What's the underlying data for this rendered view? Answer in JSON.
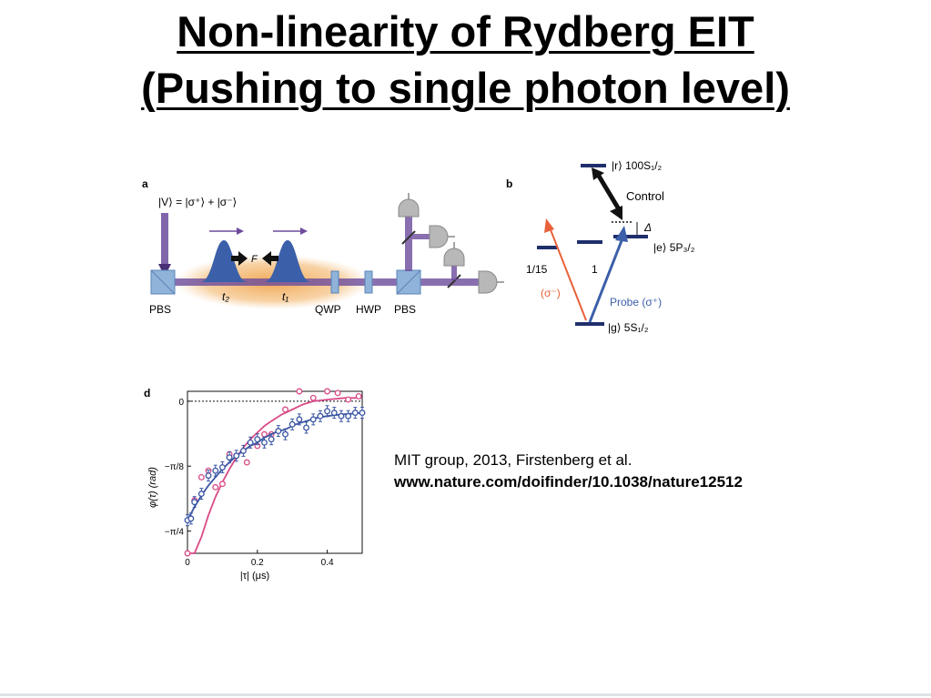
{
  "slide": {
    "title_line1": "Non-linearity of Rydberg EIT",
    "title_line2": "(Pushing to single photon level)",
    "caption_line1": "MIT group, 2013, Firstenberg et al.",
    "caption_line2": "www.nature.com/doifinder/10.1038/nature12512"
  },
  "panel_a": {
    "letter": "a",
    "state_label": "|V⟩ = |σ⁺⟩ + |σ⁻⟩",
    "force_label": "F",
    "t2_label": "t₂",
    "t1_label": "t₁",
    "pbs_left": "PBS",
    "qwp": "QWP",
    "hwp": "HWP",
    "pbs_right": "PBS",
    "colors": {
      "beam": "#6c4b9c",
      "cloud": "#f0a24a",
      "pulse": "#3b5fa8",
      "optic": "#8fb3d9"
    }
  },
  "panel_b": {
    "letter": "b",
    "rydberg_label": "|r⟩ 100S₁/₂",
    "control_label": "Control",
    "delta_label": "Δ",
    "excited_label": "|e⟩ 5P₃/₂",
    "ratio_label": "1/15",
    "one_label": "1",
    "sigma_minus_label": "(σ⁻)",
    "probe_label": "Probe (σ⁺)",
    "ground_label": "|g⟩ 5S₁/₂",
    "colors": {
      "probe": "#3b5fa8",
      "sigma_minus": "#e8613a",
      "level": "#1f2f6b"
    }
  },
  "panel_d": {
    "letter": "d"
  },
  "chart_data": {
    "type": "scatter",
    "xlabel": "|τ| (μs)",
    "ylabel": "φ(τ) (rad)",
    "xlim": [
      0,
      0.5
    ],
    "ylim": [
      -0.92,
      0.06
    ],
    "x_ticks": [
      0,
      0.2,
      0.4
    ],
    "x_tick_labels": [
      "0",
      "0.2",
      "0.4"
    ],
    "y_ticks": [
      0,
      -0.3927,
      -0.7854
    ],
    "y_tick_labels": [
      "0",
      "−π/8",
      "−π/4"
    ],
    "zero_line_dashed": true,
    "series": [
      {
        "color": "#d94a86",
        "marker": "circle-open",
        "points": [
          [
            0.0,
            -1.0
          ],
          [
            0.02,
            -0.6
          ],
          [
            0.04,
            -0.46
          ],
          [
            0.06,
            -0.42
          ],
          [
            0.08,
            -0.52
          ],
          [
            0.1,
            -0.5
          ],
          [
            0.12,
            -0.32
          ],
          [
            0.14,
            -0.33
          ],
          [
            0.17,
            -0.37
          ],
          [
            0.2,
            -0.27
          ],
          [
            0.22,
            -0.2
          ],
          [
            0.24,
            -0.2
          ],
          [
            0.28,
            -0.05
          ],
          [
            0.32,
            0.06
          ],
          [
            0.36,
            0.02
          ],
          [
            0.4,
            0.08
          ],
          [
            0.43,
            0.05
          ],
          [
            0.46,
            0.01
          ],
          [
            0.49,
            0.03
          ]
        ],
        "fit": [
          [
            0.0,
            -1.18
          ],
          [
            0.02,
            -0.98
          ],
          [
            0.04,
            -0.82
          ],
          [
            0.06,
            -0.69
          ],
          [
            0.08,
            -0.58
          ],
          [
            0.1,
            -0.49
          ],
          [
            0.12,
            -0.41
          ],
          [
            0.14,
            -0.34
          ],
          [
            0.16,
            -0.28
          ],
          [
            0.18,
            -0.23
          ],
          [
            0.2,
            -0.19
          ],
          [
            0.22,
            -0.15
          ],
          [
            0.24,
            -0.12
          ],
          [
            0.27,
            -0.08
          ],
          [
            0.3,
            -0.05
          ],
          [
            0.33,
            -0.02
          ],
          [
            0.36,
            0.0
          ],
          [
            0.4,
            0.01
          ],
          [
            0.45,
            0.02
          ],
          [
            0.5,
            0.02
          ]
        ]
      },
      {
        "color": "#3b56a3",
        "marker": "circle-errorbar",
        "points": [
          [
            0.0,
            -0.72
          ],
          [
            0.01,
            -0.71
          ],
          [
            0.02,
            -0.61
          ],
          [
            0.04,
            -0.56
          ],
          [
            0.06,
            -0.45
          ],
          [
            0.08,
            -0.42
          ],
          [
            0.1,
            -0.4
          ],
          [
            0.12,
            -0.34
          ],
          [
            0.14,
            -0.33
          ],
          [
            0.16,
            -0.3
          ],
          [
            0.18,
            -0.25
          ],
          [
            0.2,
            -0.23
          ],
          [
            0.22,
            -0.25
          ],
          [
            0.24,
            -0.23
          ],
          [
            0.26,
            -0.18
          ],
          [
            0.28,
            -0.2
          ],
          [
            0.3,
            -0.14
          ],
          [
            0.32,
            -0.11
          ],
          [
            0.34,
            -0.16
          ],
          [
            0.36,
            -0.11
          ],
          [
            0.38,
            -0.09
          ],
          [
            0.4,
            -0.06
          ],
          [
            0.42,
            -0.07
          ],
          [
            0.44,
            -0.09
          ],
          [
            0.46,
            -0.09
          ],
          [
            0.48,
            -0.07
          ],
          [
            0.5,
            -0.07
          ]
        ],
        "fit": [
          [
            0.0,
            -0.72
          ],
          [
            0.02,
            -0.64
          ],
          [
            0.04,
            -0.57
          ],
          [
            0.06,
            -0.51
          ],
          [
            0.08,
            -0.46
          ],
          [
            0.1,
            -0.41
          ],
          [
            0.12,
            -0.37
          ],
          [
            0.14,
            -0.33
          ],
          [
            0.16,
            -0.3
          ],
          [
            0.18,
            -0.27
          ],
          [
            0.2,
            -0.25
          ],
          [
            0.22,
            -0.22
          ],
          [
            0.25,
            -0.19
          ],
          [
            0.28,
            -0.17
          ],
          [
            0.31,
            -0.14
          ],
          [
            0.34,
            -0.12
          ],
          [
            0.37,
            -0.1
          ],
          [
            0.4,
            -0.09
          ],
          [
            0.44,
            -0.08
          ],
          [
            0.5,
            -0.07
          ]
        ]
      }
    ]
  }
}
